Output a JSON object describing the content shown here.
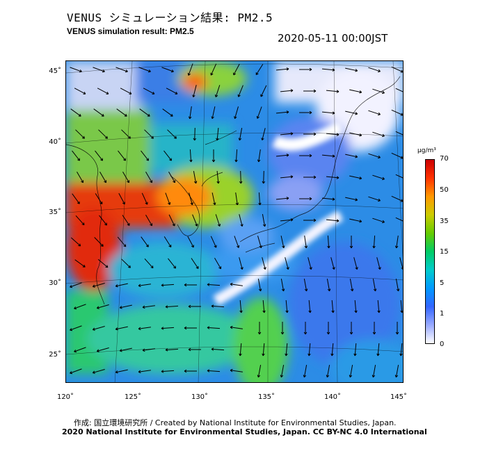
{
  "title_jp": "VENUS シミュレーション結果: PM2.5",
  "title_en": "VENUS simulation result: PM2.5",
  "timestamp": "2020-05-11 00:00JST",
  "lat_labels": [
    "45˚",
    "40˚",
    "35˚",
    "30˚",
    "25˚"
  ],
  "lon_labels": [
    "120˚",
    "125˚",
    "130˚",
    "135˚",
    "140˚",
    "145˚"
  ],
  "colorbar": {
    "unit": "μg/m³",
    "ticks": [
      "70",
      "50",
      "35",
      "15",
      "5",
      "1",
      "0"
    ],
    "colors": [
      "#cc0000",
      "#ff3300",
      "#ff9900",
      "#cccc00",
      "#66cc00",
      "#00cc66",
      "#00cccc",
      "#0099ff",
      "#3366ff",
      "#99aaff",
      "#ffffff"
    ]
  },
  "credits": {
    "line1": "作成: 国立環境研究所 / Created by National Institute for Environmental Studies, Japan.",
    "line2": "2020 National Institute for Environmental Studies, Japan. CC BY-NC 4.0 International"
  }
}
